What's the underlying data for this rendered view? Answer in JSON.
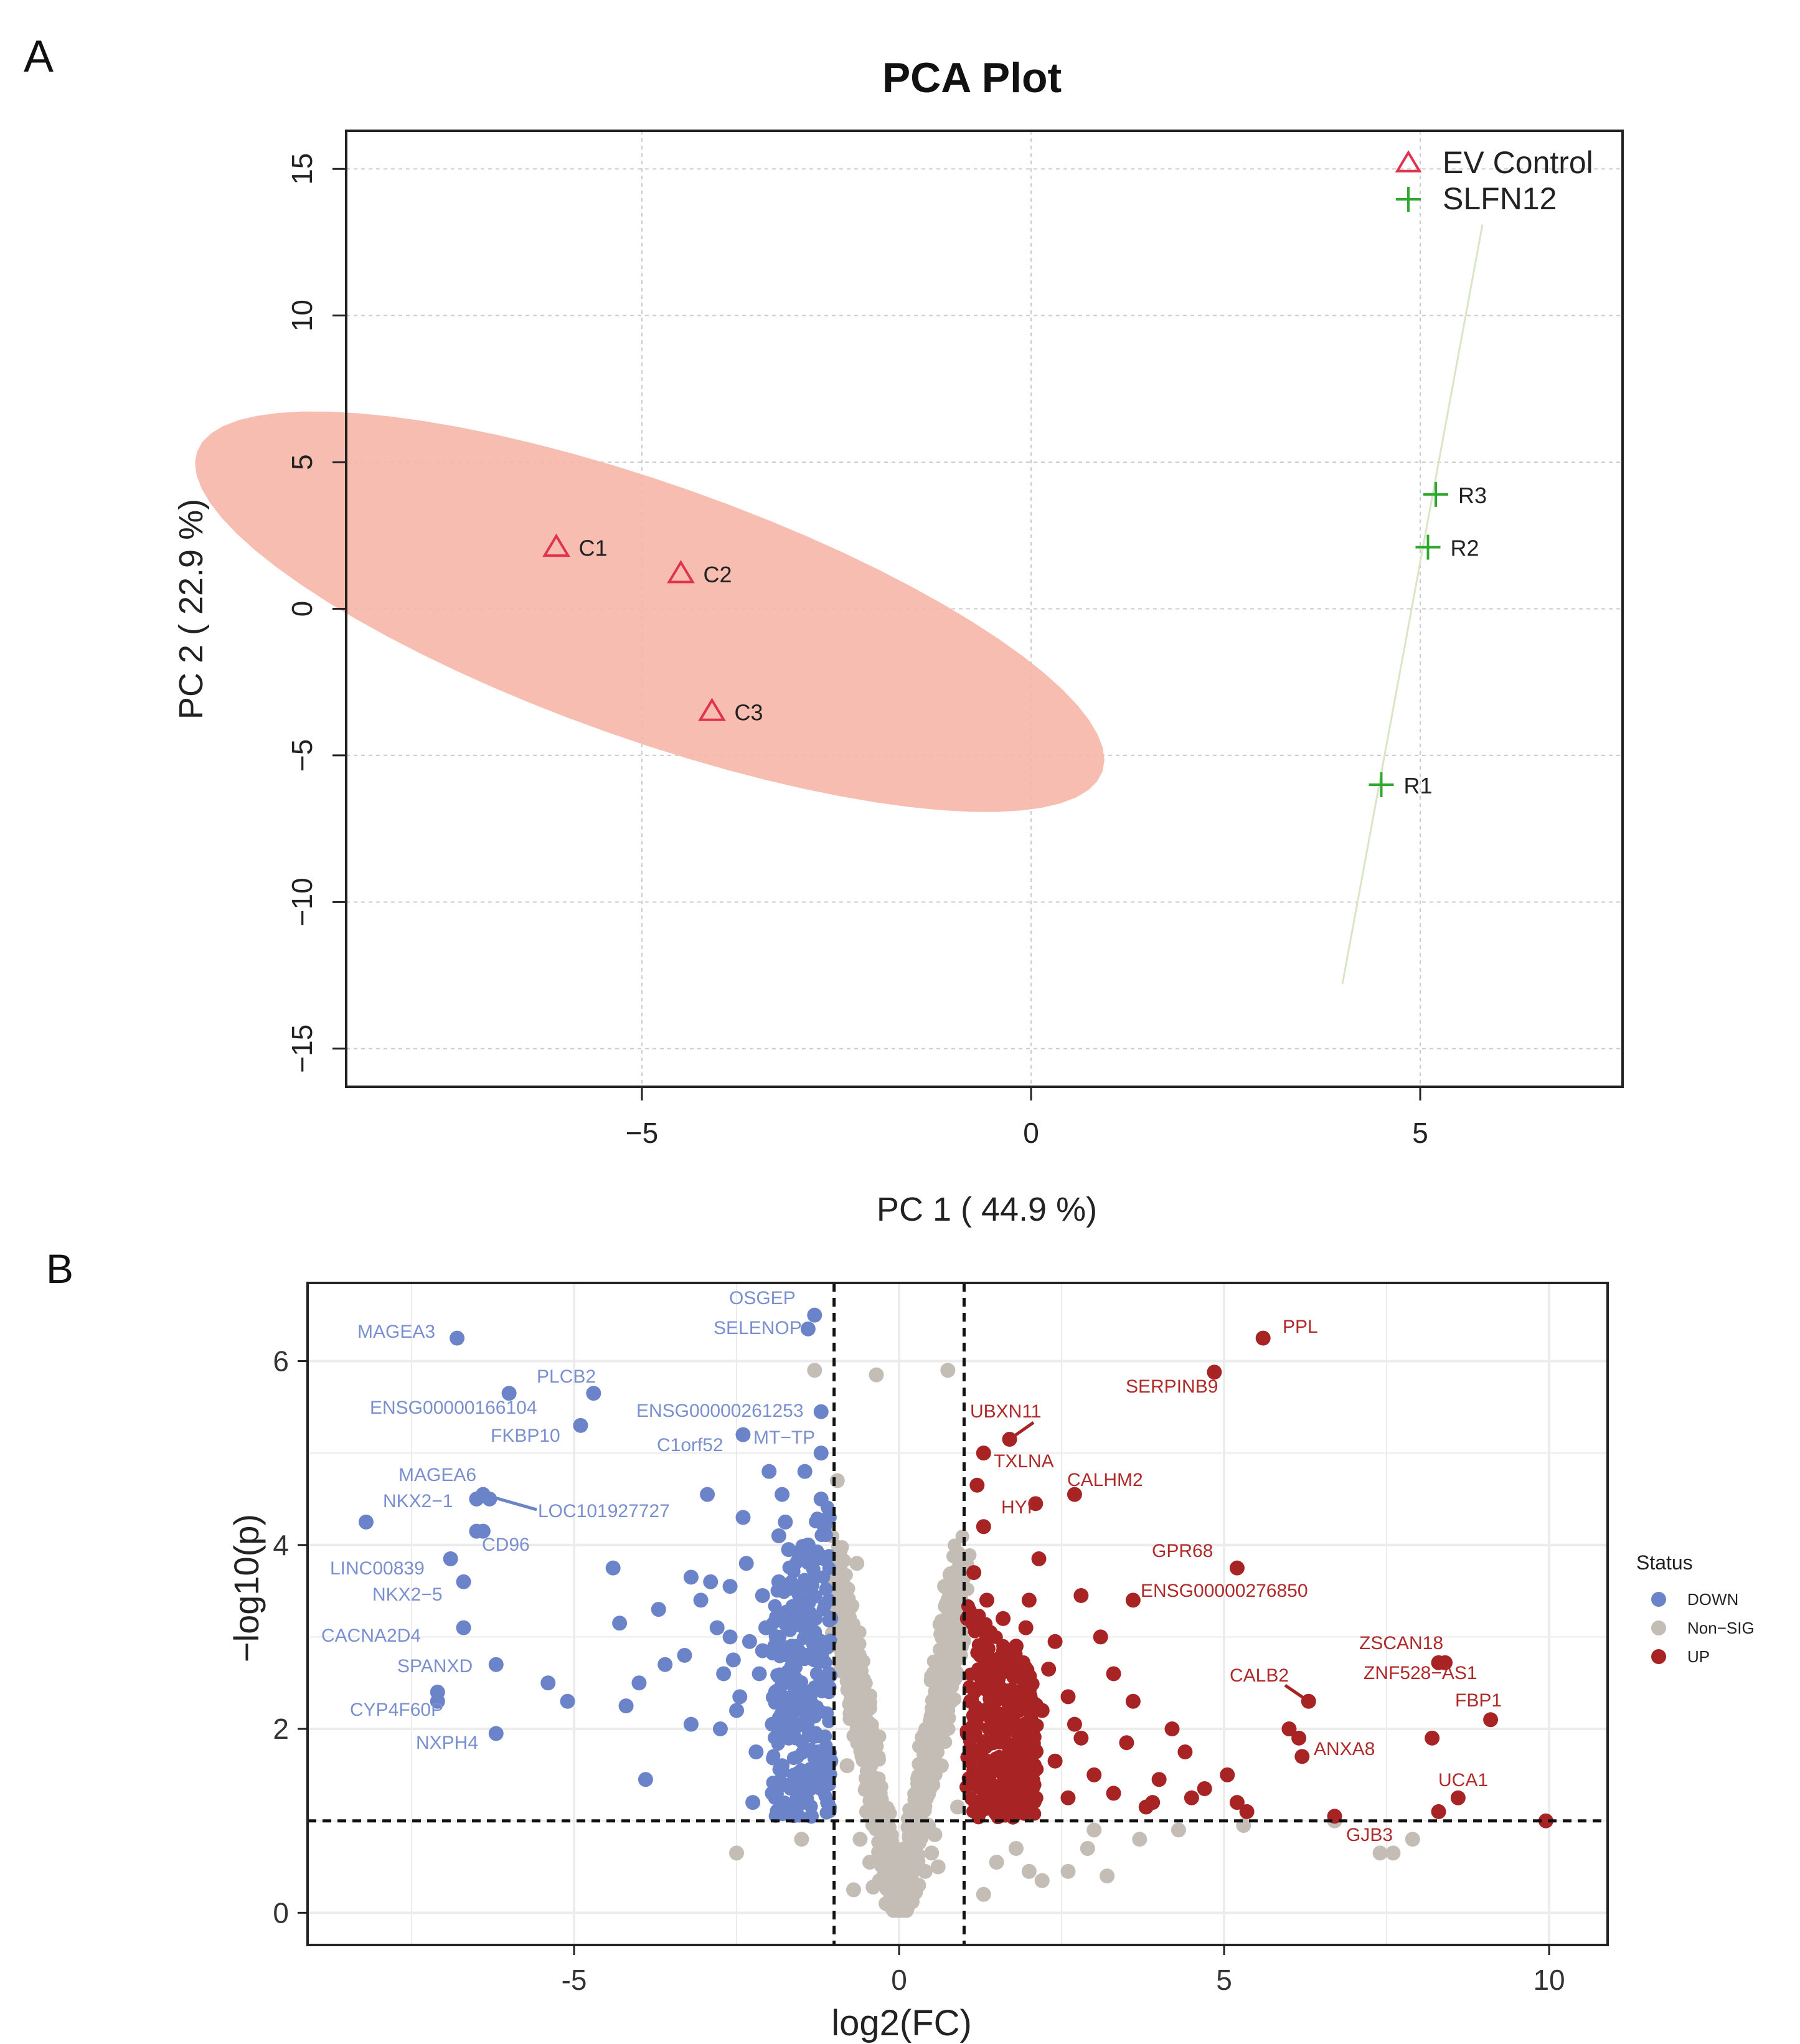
{
  "figure": {
    "panel_a_label": "A",
    "panel_b_label": "B"
  },
  "colors": {
    "ev_control": "#e0334f",
    "slfn12": "#2fa82f",
    "ellipse_fill": "#f7b6a8",
    "down": "#6b84c9",
    "nonsig": "#c4bdb6",
    "up": "#a82424",
    "grid": "#cccccc"
  },
  "chart_data": [
    {
      "type": "scatter",
      "title": "PCA Plot",
      "xlabel": "PC 1 ( 44.9 %)",
      "ylabel": "PC 2 ( 22.9 %)",
      "xlim": [
        -8.8,
        7.6
      ],
      "ylim": [
        -16.3,
        16.3
      ],
      "xticks": [
        -5,
        0,
        5
      ],
      "xtick_labels": [
        "−5",
        "0",
        "5"
      ],
      "yticks": [
        -15,
        -10,
        -5,
        0,
        5,
        10,
        15
      ],
      "ytick_labels": [
        "−15",
        "−10",
        "−5",
        "0",
        "5",
        "10",
        "15"
      ],
      "grid": true,
      "legend": {
        "position": "top-right",
        "entries": [
          {
            "label": "EV Control",
            "marker": "triangle"
          },
          {
            "label": "SLFN12",
            "marker": "cross"
          }
        ]
      },
      "series": [
        {
          "name": "EV Control",
          "marker": "triangle",
          "points": [
            {
              "label": "C1",
              "x": -6.1,
              "y": 2.1
            },
            {
              "label": "C2",
              "x": -4.5,
              "y": 1.2
            },
            {
              "label": "C3",
              "x": -4.1,
              "y": -3.5
            }
          ],
          "ellipse": {
            "center": [
              -4.9,
              -0.1
            ],
            "semi_major": 8.4,
            "semi_minor": 3.2,
            "angle_deg": 51
          }
        },
        {
          "name": "SLFN12",
          "marker": "cross",
          "points": [
            {
              "label": "R1",
              "x": 4.5,
              "y": -6.0
            },
            {
              "label": "R2",
              "x": 5.1,
              "y": 2.1
            },
            {
              "label": "R3",
              "x": 5.2,
              "y": 3.9
            }
          ],
          "ellipse_line": {
            "x1": 4.0,
            "y1": -12.8,
            "x2": 5.8,
            "y2": 13.1
          }
        }
      ]
    },
    {
      "type": "scatter",
      "subtype": "volcano",
      "xlabel": "log2(FC)",
      "ylabel": "−log10(p)",
      "xlim": [
        -9.1,
        10.9
      ],
      "ylim": [
        -0.35,
        6.85
      ],
      "xticks": [
        -5,
        0,
        5,
        10
      ],
      "xtick_labels": [
        "-5",
        "0",
        "5",
        "10"
      ],
      "yticks": [
        0,
        2,
        4,
        6
      ],
      "ytick_labels": [
        "0",
        "2",
        "4",
        "6"
      ],
      "grid": true,
      "thresholds": {
        "log2fc": [
          -1,
          1
        ],
        "neg_log10_p": 1
      },
      "legend": {
        "position": "right",
        "title": "Status",
        "entries": [
          {
            "label": "DOWN",
            "class": "down"
          },
          {
            "label": "Non−SIG",
            "class": "nonsig"
          },
          {
            "label": "UP",
            "class": "up"
          }
        ]
      },
      "labeled_points": [
        {
          "label": "MAGEA3",
          "x": -6.8,
          "y": 6.25,
          "class": "down"
        },
        {
          "label": "OSGEP",
          "x": -1.3,
          "y": 6.5,
          "class": "down"
        },
        {
          "label": "SELENOP",
          "x": -1.4,
          "y": 6.35,
          "class": "down"
        },
        {
          "label": "PLCB2",
          "x": -4.7,
          "y": 5.65,
          "class": "down"
        },
        {
          "label": "ENSG00000166104",
          "x": -6.0,
          "y": 5.65,
          "class": "down"
        },
        {
          "label": "FKBP10",
          "x": -4.9,
          "y": 5.3,
          "class": "down"
        },
        {
          "label": "ENSG00000261253",
          "x": -1.2,
          "y": 5.45,
          "class": "down"
        },
        {
          "label": "C1orf52",
          "x": -2.4,
          "y": 5.2,
          "class": "down"
        },
        {
          "label": "MT−TP",
          "x": -1.2,
          "y": 5.0,
          "class": "down"
        },
        {
          "label": "MAGEA6",
          "x": -6.4,
          "y": 4.55,
          "class": "down"
        },
        {
          "label": "NKX2−1",
          "x": -6.5,
          "y": 4.5,
          "class": "down"
        },
        {
          "label": "LOC101927727",
          "x": -6.3,
          "y": 4.5,
          "class": "down"
        },
        {
          "label": "CD96",
          "x": -6.4,
          "y": 4.15,
          "class": "down"
        },
        {
          "label": "LINC00839",
          "x": -6.9,
          "y": 3.85,
          "class": "down"
        },
        {
          "label": "NKX2−5",
          "x": -6.7,
          "y": 3.6,
          "class": "down"
        },
        {
          "label": "CACNA2D4",
          "x": -6.7,
          "y": 3.1,
          "class": "down"
        },
        {
          "label": "SPANXD",
          "x": -6.2,
          "y": 2.7,
          "class": "down"
        },
        {
          "label": "CYP4F60P",
          "x": -7.1,
          "y": 2.3,
          "class": "down"
        },
        {
          "label": "NXPH4",
          "x": -6.2,
          "y": 1.95,
          "class": "down"
        },
        {
          "label": "PPL",
          "x": 5.6,
          "y": 6.25,
          "class": "up"
        },
        {
          "label": "SERPINB9",
          "x": 4.85,
          "y": 5.88,
          "class": "up"
        },
        {
          "label": "UBXN11",
          "x": 1.7,
          "y": 5.15,
          "class": "up"
        },
        {
          "label": "TXLNA",
          "x": 1.3,
          "y": 5.0,
          "class": "up"
        },
        {
          "label": "CALHM2",
          "x": 2.7,
          "y": 4.55,
          "class": "up"
        },
        {
          "label": "HYI",
          "x": 2.1,
          "y": 4.45,
          "class": "up"
        },
        {
          "label": "GPR68",
          "x": 5.2,
          "y": 3.75,
          "class": "up"
        },
        {
          "label": "ENSG00000276850",
          "x": 3.6,
          "y": 3.4,
          "class": "up"
        },
        {
          "label": "ZSCAN18",
          "x": 8.3,
          "y": 2.72,
          "class": "up"
        },
        {
          "label": "ZNF528−AS1",
          "x": 8.4,
          "y": 2.72,
          "class": "up"
        },
        {
          "label": "CALB2",
          "x": 6.3,
          "y": 2.3,
          "class": "up"
        },
        {
          "label": "FBP1",
          "x": 9.1,
          "y": 2.1,
          "class": "up"
        },
        {
          "label": "ANXA8",
          "x": 6.2,
          "y": 1.7,
          "class": "up"
        },
        {
          "label": "UCA1",
          "x": 8.6,
          "y": 1.25,
          "class": "up"
        },
        {
          "label": "GJB3",
          "x": 7.6,
          "y": 0.65,
          "class": "nonsig"
        }
      ],
      "points": {
        "down": [
          [
            -8.2,
            4.25
          ],
          [
            -7.1,
            2.4
          ],
          [
            -6.5,
            4.15
          ],
          [
            -5.1,
            2.3
          ],
          [
            -5.4,
            2.5
          ],
          [
            -4.4,
            3.75
          ],
          [
            -4.2,
            2.25
          ],
          [
            -4.0,
            2.5
          ],
          [
            -4.3,
            3.15
          ],
          [
            -3.9,
            1.45
          ],
          [
            -3.6,
            2.7
          ],
          [
            -3.3,
            2.8
          ],
          [
            -3.7,
            3.3
          ],
          [
            -3.2,
            3.65
          ],
          [
            -3.05,
            3.4
          ],
          [
            -2.9,
            3.6
          ],
          [
            -2.8,
            3.1
          ],
          [
            -2.95,
            4.55
          ],
          [
            -3.2,
            2.05
          ],
          [
            -2.7,
            2.6
          ],
          [
            -2.6,
            3.0
          ],
          [
            -2.5,
            2.2
          ],
          [
            -2.35,
            3.8
          ],
          [
            -2.2,
            1.75
          ],
          [
            -2.4,
            4.3
          ],
          [
            -2.1,
            3.45
          ],
          [
            -2.3,
            2.95
          ],
          [
            -2.0,
            4.8
          ],
          [
            -1.9,
            2.4
          ],
          [
            -2.25,
            1.2
          ],
          [
            -1.8,
            4.55
          ],
          [
            -1.85,
            3.6
          ],
          [
            -1.7,
            1.9
          ],
          [
            -1.65,
            2.9
          ],
          [
            -2.15,
            2.6
          ],
          [
            -1.95,
            2.05
          ],
          [
            -1.75,
            4.25
          ],
          [
            -1.6,
            3.3
          ],
          [
            -1.55,
            1.5
          ],
          [
            -2.05,
            3.1
          ],
          [
            -1.45,
            4.8
          ],
          [
            -1.4,
            4.0
          ],
          [
            -1.5,
            2.25
          ],
          [
            -1.35,
            3.55
          ],
          [
            -1.3,
            2.75
          ],
          [
            -1.25,
            1.75
          ],
          [
            -1.2,
            4.5
          ],
          [
            -1.15,
            3.85
          ],
          [
            -1.1,
            2.45
          ],
          [
            -1.05,
            3.2
          ],
          [
            -1.45,
            1.25
          ],
          [
            -1.35,
            1.05
          ],
          [
            -1.2,
            1.35
          ],
          [
            -1.6,
            2.55
          ],
          [
            -1.8,
            1.6
          ],
          [
            -2.45,
            2.35
          ],
          [
            -2.6,
            3.55
          ],
          [
            -2.75,
            2.0
          ],
          [
            -1.95,
            1.3
          ],
          [
            -1.7,
            3.95
          ],
          [
            -1.15,
            4.2
          ],
          [
            -1.1,
            1.2
          ],
          [
            -1.3,
            3.05
          ],
          [
            -1.4,
            2.1
          ],
          [
            -2.1,
            2.85
          ],
          [
            -1.85,
            4.1
          ],
          [
            -2.55,
            2.75
          ],
          [
            -1.65,
            1.1
          ],
          [
            -1.05,
            1.65
          ],
          [
            -1.2,
            2.95
          ]
        ],
        "nonsig": [
          [
            -1.3,
            5.9
          ],
          [
            -0.35,
            5.85
          ],
          [
            0.75,
            5.9
          ],
          [
            -0.55,
            2.05
          ],
          [
            -0.45,
            0.55
          ],
          [
            -2.5,
            0.65
          ],
          [
            -0.7,
            0.25
          ],
          [
            -0.9,
            3.2
          ],
          [
            -0.8,
            1.6
          ],
          [
            -0.5,
            1.1
          ],
          [
            -0.3,
            0.35
          ],
          [
            0.3,
            0.3
          ],
          [
            0.55,
            0.85
          ],
          [
            0.65,
            1.6
          ],
          [
            0.8,
            2.3
          ],
          [
            0.85,
            2.9
          ],
          [
            0.95,
            3.75
          ],
          [
            0.75,
            3.3
          ],
          [
            0.5,
            0.65
          ],
          [
            0.2,
            0.12
          ],
          [
            0.0,
            0.05
          ],
          [
            -0.2,
            0.1
          ],
          [
            0.4,
            0.45
          ],
          [
            -0.6,
            0.8
          ],
          [
            -0.95,
            4.7
          ],
          [
            -0.85,
            2.7
          ],
          [
            0.9,
            1.15
          ],
          [
            1.5,
            0.55
          ],
          [
            2.0,
            0.45
          ],
          [
            2.6,
            0.45
          ],
          [
            3.2,
            0.4
          ],
          [
            1.8,
            0.7
          ],
          [
            2.9,
            0.7
          ],
          [
            3.7,
            0.8
          ],
          [
            4.3,
            0.9
          ],
          [
            5.3,
            0.95
          ],
          [
            6.7,
            1.0
          ],
          [
            7.4,
            0.65
          ],
          [
            7.9,
            0.8
          ],
          [
            3.0,
            0.9
          ],
          [
            1.3,
            0.2
          ],
          [
            2.2,
            0.35
          ],
          [
            0.6,
            0.5
          ],
          [
            -1.5,
            0.8
          ],
          [
            -0.65,
            3.8
          ],
          [
            0.7,
            3.55
          ],
          [
            0.25,
            0.22
          ],
          [
            -0.1,
            0.15
          ],
          [
            -0.4,
            0.28
          ],
          [
            0.45,
            0.95
          ]
        ],
        "up": [
          [
            1.2,
            4.65
          ],
          [
            1.3,
            4.2
          ],
          [
            2.15,
            3.85
          ],
          [
            2.0,
            3.4
          ],
          [
            1.6,
            3.2
          ],
          [
            2.8,
            3.45
          ],
          [
            1.15,
            3.7
          ],
          [
            1.4,
            3.05
          ],
          [
            1.8,
            2.9
          ],
          [
            2.4,
            2.95
          ],
          [
            3.1,
            3.0
          ],
          [
            3.3,
            2.6
          ],
          [
            2.6,
            2.35
          ],
          [
            3.6,
            2.3
          ],
          [
            4.2,
            2.0
          ],
          [
            4.4,
            1.75
          ],
          [
            4.0,
            1.45
          ],
          [
            4.7,
            1.35
          ],
          [
            5.05,
            1.5
          ],
          [
            3.8,
            1.15
          ],
          [
            3.9,
            1.2
          ],
          [
            4.5,
            1.25
          ],
          [
            5.2,
            1.2
          ],
          [
            5.35,
            1.1
          ],
          [
            6.7,
            1.05
          ],
          [
            8.2,
            1.9
          ],
          [
            8.3,
            1.1
          ],
          [
            9.95,
            1.0
          ],
          [
            3.0,
            1.5
          ],
          [
            2.8,
            1.9
          ],
          [
            2.2,
            2.2
          ],
          [
            1.9,
            2.55
          ],
          [
            1.55,
            2.45
          ],
          [
            1.25,
            2.8
          ],
          [
            1.35,
            3.4
          ],
          [
            1.1,
            2.3
          ],
          [
            1.45,
            1.85
          ],
          [
            1.7,
            1.55
          ],
          [
            2.05,
            1.35
          ],
          [
            2.4,
            1.65
          ],
          [
            1.3,
            1.2
          ],
          [
            1.15,
            1.55
          ],
          [
            1.9,
            1.1
          ],
          [
            2.6,
            1.25
          ],
          [
            3.3,
            1.3
          ],
          [
            1.6,
            2.1
          ],
          [
            2.3,
            2.65
          ],
          [
            1.05,
            1.95
          ],
          [
            1.25,
            1.1
          ],
          [
            1.5,
            1.35
          ],
          [
            1.8,
            2.0
          ],
          [
            2.1,
            1.75
          ],
          [
            2.7,
            2.05
          ],
          [
            3.5,
            1.85
          ],
          [
            1.2,
            2.6
          ],
          [
            1.4,
            2.25
          ],
          [
            1.65,
            2.75
          ],
          [
            1.95,
            3.1
          ],
          [
            1.05,
            3.2
          ],
          [
            1.35,
            1.65
          ],
          [
            6.0,
            2.0
          ],
          [
            6.15,
            1.9
          ]
        ]
      }
    }
  ]
}
